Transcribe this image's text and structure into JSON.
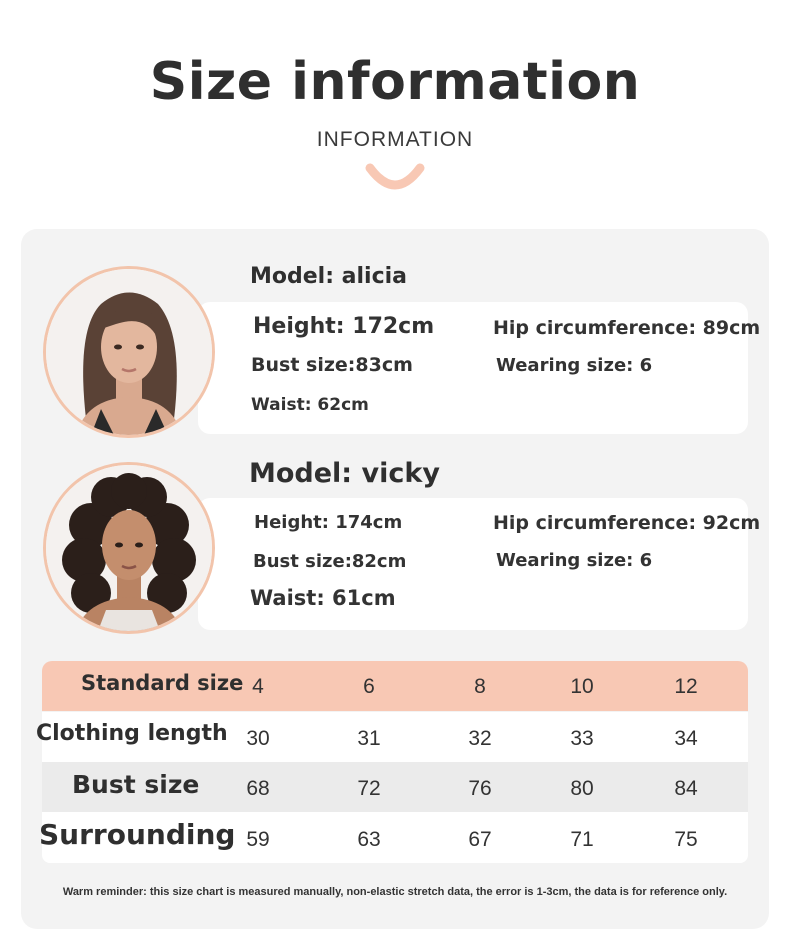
{
  "header": {
    "title": "Size information",
    "subtitle": "INFORMATION",
    "accent_color": "#f8c8b4"
  },
  "models": [
    {
      "name": "Model: alicia",
      "height": "Height: 172cm",
      "hip": "Hip circumference: 89cm",
      "bust": "Bust size:83cm",
      "wearing": "Wearing size: 6",
      "waist": "Waist: 62cm",
      "photo_icon": "model-portrait-straight-hair"
    },
    {
      "name": "Model: vicky",
      "height": "Height: 174cm",
      "hip": "Hip circumference: 92cm",
      "bust": "Bust size:82cm",
      "wearing": "Wearing size: 6",
      "waist": "Waist: 61cm",
      "photo_icon": "model-portrait-curly-hair"
    }
  ],
  "size_table": {
    "header_label": "Standard size",
    "sizes": [
      "4",
      "6",
      "8",
      "10",
      "12"
    ],
    "rows": [
      {
        "label": "Clothing length",
        "values": [
          "30",
          "31",
          "32",
          "33",
          "34"
        ]
      },
      {
        "label": "Bust size",
        "values": [
          "68",
          "72",
          "76",
          "80",
          "84"
        ]
      },
      {
        "label": "Surrounding",
        "values": [
          "59",
          "63",
          "67",
          "71",
          "75"
        ]
      }
    ]
  },
  "footer": {
    "note": "Warm reminder: this size chart is measured manually, non-elastic stretch data, the error is 1-3cm, the data is for reference only."
  }
}
